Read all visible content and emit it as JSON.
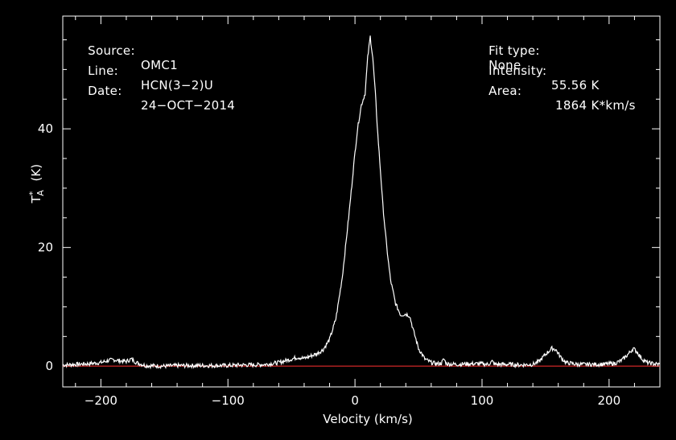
{
  "header": {
    "source_label": "Source:",
    "source_value": "OMC1",
    "line_label": "Line:",
    "line_value": "HCN(3−2)U",
    "date_label": "Date:",
    "date_value": "24−OCT−2014",
    "fit_label": "Fit type:",
    "fit_value": "None",
    "intensity_label": "Intensity:",
    "intensity_value": "55.56 K",
    "area_label": "Area:",
    "area_value": "1864 K*km/s"
  },
  "chart_data": {
    "type": "line",
    "xlabel": "Velocity (km/s)",
    "ylabel_main": "T",
    "ylabel_sup": "*",
    "ylabel_sub": "A",
    "ylabel_unit": "(K)",
    "xlim": [
      -230,
      240
    ],
    "ylim": [
      -3.5,
      59
    ],
    "xticks": [
      -200,
      -100,
      0,
      100,
      200
    ],
    "xtick_labels": [
      "−200",
      "−100",
      "0",
      "100",
      "200"
    ],
    "yticks": [
      0,
      20,
      40
    ],
    "ytick_labels": [
      "0",
      "20",
      "40"
    ],
    "baseline_color": "#ff3030",
    "line_color": "#ffffff",
    "series": [
      {
        "points": [
          [
            -230,
            0.2
          ],
          [
            -220,
            0.3
          ],
          [
            -210,
            0.4
          ],
          [
            -200,
            0.6
          ],
          [
            -195,
            0.9
          ],
          [
            -190,
            1.1
          ],
          [
            -185,
            0.9
          ],
          [
            -180,
            0.8
          ],
          [
            -176,
            1.2
          ],
          [
            -172,
            0.6
          ],
          [
            -165,
            0.1
          ],
          [
            -150,
            0.0
          ],
          [
            -140,
            0.1
          ],
          [
            -120,
            0.1
          ],
          [
            -100,
            0.1
          ],
          [
            -90,
            0.2
          ],
          [
            -80,
            0.2
          ],
          [
            -70,
            0.3
          ],
          [
            -60,
            0.6
          ],
          [
            -50,
            1.2
          ],
          [
            -45,
            1.5
          ],
          [
            -40,
            1.3
          ],
          [
            -35,
            1.7
          ],
          [
            -30,
            2.1
          ],
          [
            -25,
            2.8
          ],
          [
            -20,
            4.5
          ],
          [
            -15,
            8.0
          ],
          [
            -10,
            15.0
          ],
          [
            -5,
            25.0
          ],
          [
            0,
            36.0
          ],
          [
            2,
            40.0
          ],
          [
            5,
            44.0
          ],
          [
            8,
            46.0
          ],
          [
            10,
            52.0
          ],
          [
            12,
            55.56
          ],
          [
            14,
            52.0
          ],
          [
            16,
            46.0
          ],
          [
            18,
            39.0
          ],
          [
            20,
            33.0
          ],
          [
            22,
            27.0
          ],
          [
            25,
            20.0
          ],
          [
            28,
            14.5
          ],
          [
            32,
            10.5
          ],
          [
            36,
            8.6
          ],
          [
            40,
            8.8
          ],
          [
            43,
            8.5
          ],
          [
            46,
            6.0
          ],
          [
            50,
            3.0
          ],
          [
            55,
            1.2
          ],
          [
            60,
            0.6
          ],
          [
            65,
            0.4
          ],
          [
            68,
            0.5
          ],
          [
            70,
            1.2
          ],
          [
            72,
            0.4
          ],
          [
            80,
            0.3
          ],
          [
            90,
            0.4
          ],
          [
            100,
            0.4
          ],
          [
            105,
            0.3
          ],
          [
            108,
            0.8
          ],
          [
            110,
            0.3
          ],
          [
            120,
            0.3
          ],
          [
            130,
            0.2
          ],
          [
            140,
            0.3
          ],
          [
            145,
            0.8
          ],
          [
            150,
            2.0
          ],
          [
            155,
            3.0
          ],
          [
            158,
            2.8
          ],
          [
            162,
            1.5
          ],
          [
            166,
            0.6
          ],
          [
            175,
            0.3
          ],
          [
            185,
            0.3
          ],
          [
            195,
            0.3
          ],
          [
            205,
            0.5
          ],
          [
            210,
            1.0
          ],
          [
            215,
            2.0
          ],
          [
            219,
            3.0
          ],
          [
            222,
            2.4
          ],
          [
            226,
            1.2
          ],
          [
            230,
            0.6
          ],
          [
            235,
            0.4
          ],
          [
            240,
            0.3
          ]
        ]
      }
    ]
  }
}
